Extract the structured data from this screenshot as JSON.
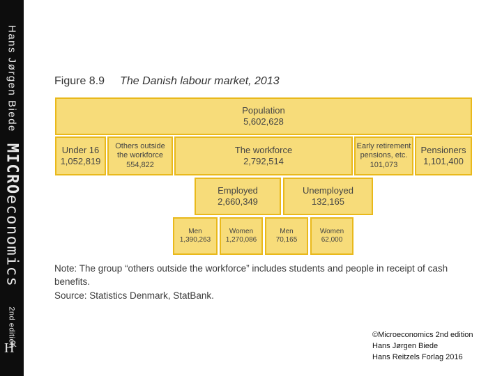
{
  "spine": {
    "author": "Hans Jørgen Biede",
    "title_bold": "MICRO",
    "title_rest": "economics",
    "edition": "2nd edition",
    "logo": "HR"
  },
  "figure": {
    "number": "Figure 8.9",
    "title": "The Danish labour market, 2013"
  },
  "diagram": {
    "population": {
      "label": "Population",
      "value": "5,602,628"
    },
    "under16": {
      "label": "Under 16",
      "value": "1,052,819"
    },
    "others": {
      "label_1": "Others outside",
      "label_2": "the workforce",
      "value": "554,822"
    },
    "workforce": {
      "label": "The workforce",
      "value": "2,792,514"
    },
    "early_retirement": {
      "label_1": "Early retirement",
      "label_2": "pensions, etc.",
      "value": "101,073"
    },
    "pensioners": {
      "label": "Pensioners",
      "value": "1,101,400"
    },
    "employed": {
      "label": "Employed",
      "value": "2,660,349"
    },
    "unemployed": {
      "label": "Unemployed",
      "value": "132,165"
    },
    "employed_men": {
      "label": "Men",
      "value": "1,390,263"
    },
    "employed_women": {
      "label": "Women",
      "value": "1,270,086"
    },
    "unemployed_men": {
      "label": "Men",
      "value": "70,165"
    },
    "unemployed_women": {
      "label": "Women",
      "value": "62,000"
    }
  },
  "note": "Note: The group “others outside the workforce” includes students and people in receipt of cash benefits.",
  "source": "Source: Statistics Denmark, StatBank.",
  "credits": {
    "line1": "©Microeconomics 2nd edition",
    "line2": "Hans Jørgen Biede",
    "line3": "Hans Reitzels Forlag 2016"
  },
  "colors": {
    "box_fill": "#f7dc7a",
    "box_border": "#e9b91b",
    "spine": "#0d0d0d"
  }
}
